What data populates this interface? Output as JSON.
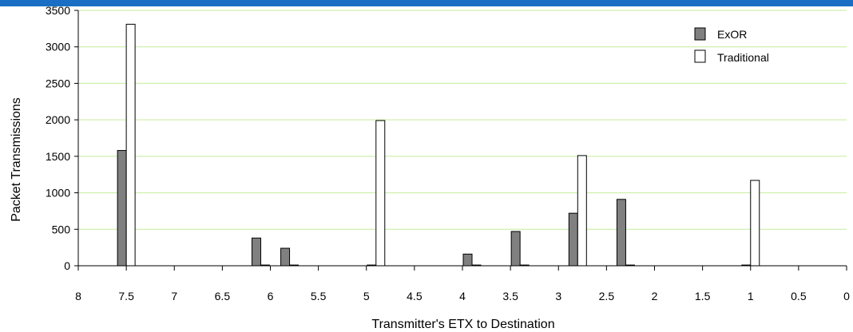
{
  "colors": {
    "accent_bar": "#1a6fc4",
    "grid": "#c6ec9b",
    "exor_fill": "#808080",
    "traditional_fill": "#ffffff",
    "bar_stroke": "#000000"
  },
  "chart_data": {
    "type": "bar",
    "title": "",
    "xlabel": "Transmitter's ETX to Destination",
    "ylabel": "Packet Transmissions",
    "xlim": [
      8,
      0
    ],
    "ylim": [
      0,
      3500
    ],
    "x_reversed": true,
    "grid": true,
    "legend_position": "top-right",
    "x_ticks": [
      "8",
      "7.5",
      "7",
      "6.5",
      "6",
      "5.5",
      "5",
      "4.5",
      "4",
      "3.5",
      "3",
      "2.5",
      "2",
      "1.5",
      "1",
      "0.5",
      "0"
    ],
    "y_ticks": [
      "0",
      "500",
      "1000",
      "1500",
      "2000",
      "2500",
      "3000",
      "3500"
    ],
    "x": [
      7.5,
      6.1,
      5.8,
      4.9,
      3.9,
      3.4,
      2.8,
      2.3,
      1.0
    ],
    "series": [
      {
        "name": "ExOR",
        "values": [
          1580,
          380,
          240,
          10,
          160,
          470,
          720,
          910,
          10
        ]
      },
      {
        "name": "Traditional",
        "values": [
          3310,
          10,
          10,
          1990,
          10,
          10,
          1510,
          10,
          1170
        ]
      }
    ]
  }
}
